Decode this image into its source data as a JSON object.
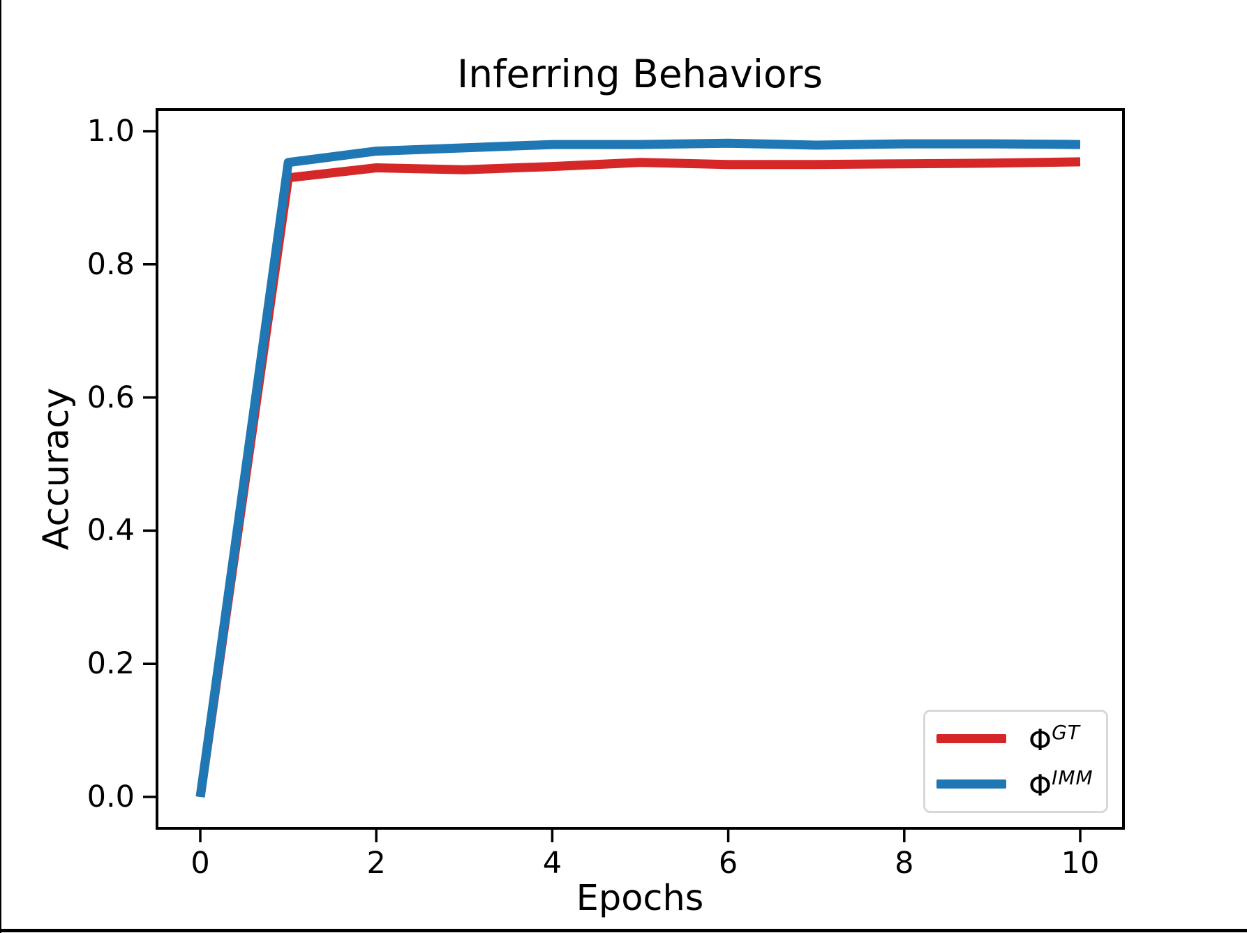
{
  "chart_data": {
    "type": "line",
    "title": "Inferring Behaviors",
    "xlabel": "Epochs",
    "ylabel": "Accuracy",
    "x": [
      0,
      1,
      2,
      3,
      4,
      5,
      6,
      7,
      8,
      9,
      10
    ],
    "x_ticks": [
      0,
      2,
      4,
      6,
      8,
      10
    ],
    "y_ticks": [
      "0.0",
      "0.2",
      "0.4",
      "0.6",
      "0.8",
      "1.0"
    ],
    "xlim": [
      -0.5,
      10.5
    ],
    "ylim": [
      -0.05,
      1.05
    ],
    "grid": false,
    "legend_position": "lower right",
    "series": [
      {
        "name": "phi-GT",
        "label_base": "Φ",
        "label_sup": "GT",
        "color": "#d62728",
        "values": [
          0.0,
          0.93,
          0.945,
          0.942,
          0.947,
          0.953,
          0.95,
          0.95,
          0.951,
          0.952,
          0.954
        ]
      },
      {
        "name": "phi-IMM",
        "label_base": "Φ",
        "label_sup": "IMM",
        "color": "#1f77b4",
        "values": [
          0.0,
          0.953,
          0.97,
          0.975,
          0.98,
          0.98,
          0.982,
          0.979,
          0.981,
          0.981,
          0.98
        ]
      }
    ]
  },
  "colors": {
    "axis": "#000000",
    "legend_border": "#d8d8d8",
    "background": "#ffffff"
  }
}
